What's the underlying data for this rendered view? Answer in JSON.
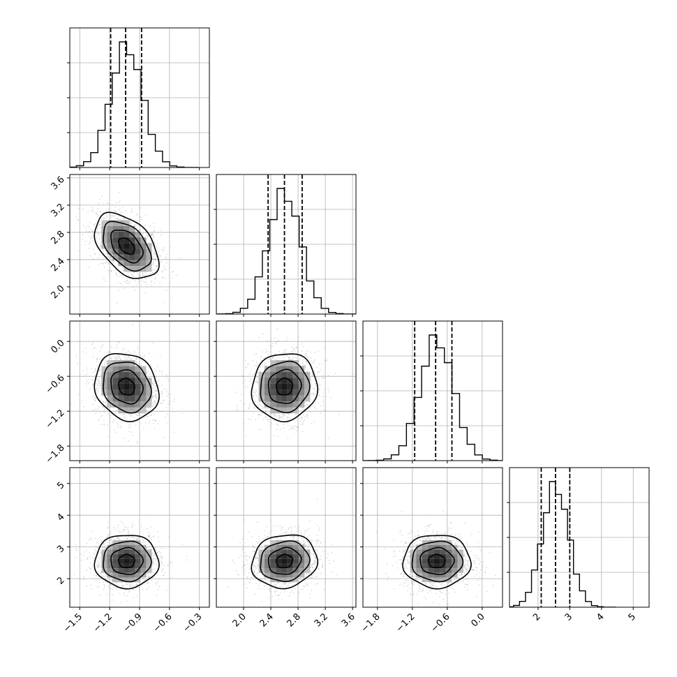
{
  "chart_data": {
    "type": "corner",
    "parameters": [
      {
        "range": [
          -1.6,
          -0.2
        ],
        "ticks": [
          -1.5,
          -1.2,
          -0.9,
          -0.6,
          -0.3
        ],
        "tick_labels": [
          "−1.5",
          "−1.2",
          "−0.9",
          "−0.6",
          "−0.3"
        ],
        "mean": -1.03,
        "sigma": 0.16,
        "quantiles": [
          -1.19,
          -1.04,
          -0.88
        ]
      },
      {
        "range": [
          1.6,
          3.65
        ],
        "ticks": [
          2.0,
          2.4,
          2.8,
          3.2,
          3.6
        ],
        "tick_labels": [
          "2.0",
          "2.4",
          "2.8",
          "3.2",
          "3.6"
        ],
        "mean": 2.6,
        "sigma": 0.24,
        "quantiles": [
          2.36,
          2.6,
          2.86
        ]
      },
      {
        "range": [
          -2.05,
          0.35
        ],
        "ticks": [
          -1.8,
          -1.2,
          -0.6,
          0.0
        ],
        "tick_labels": [
          "−1.8",
          "−1.2",
          "−0.6",
          "0.0"
        ],
        "mean": -0.78,
        "sigma": 0.29,
        "quantiles": [
          -1.16,
          -0.8,
          -0.52
        ]
      },
      {
        "range": [
          1.1,
          5.5
        ],
        "ticks": [
          2,
          3,
          4,
          5
        ],
        "tick_labels": [
          "2",
          "3",
          "4",
          "5"
        ],
        "mean": 2.55,
        "sigma": 0.42,
        "quantiles": [
          2.1,
          2.55,
          3.0
        ]
      }
    ],
    "correlations": [
      [
        0,
        1,
        -0.45
      ],
      [
        0,
        2,
        -0.15
      ],
      [
        0,
        3,
        0.0
      ],
      [
        1,
        2,
        0.05
      ],
      [
        1,
        3,
        0.1
      ],
      [
        2,
        3,
        0.0
      ]
    ],
    "histogram_bins": 20,
    "grid": true,
    "diagonal": "1d histograms with dashed quantile lines",
    "off_diagonal": "2d scatter + density contours"
  }
}
